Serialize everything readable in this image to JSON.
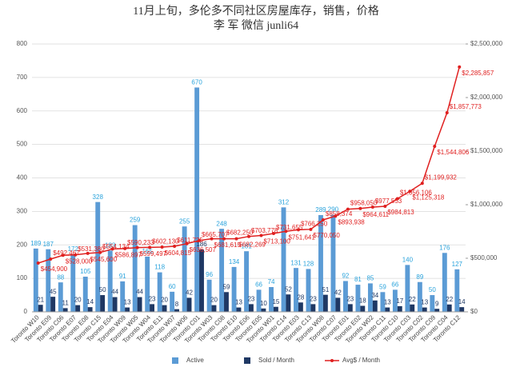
{
  "chart_data": {
    "type": "bar_line",
    "title": "11月上旬，多伦多不同社区房屋库存，销售，价格",
    "subtitle": "李 军  微信 junli64",
    "categories": [
      "Toronto W10",
      "Toronto E09",
      "Toronto C06",
      "Toronto E07",
      "Toronto E08",
      "Toronto C15",
      "Toronto E04",
      "Toronto W09",
      "Toronto W05",
      "Toronto W04",
      "Toronto E11",
      "Toronto W07",
      "Toronto W06",
      "Toronto C01",
      "Toronto W03",
      "Toronto C08",
      "Toronto E10",
      "Toronto E06",
      "Toronto E05",
      "Toronto W01",
      "Toronto C14",
      "Toronto E03",
      "Toronto C13",
      "Toronto W08",
      "Toronto C07",
      "Toronto E01",
      "Toronto E02",
      "Toronto W02",
      "Toronto C11",
      "Toronto C10",
      "Toronto C03",
      "Toronto C02",
      "Toronto C09",
      "Toronto C04",
      "Toronto C12"
    ],
    "series": [
      {
        "name": "Active",
        "color": "#5b9bd5",
        "label_color": "#2aa3dc",
        "values": [
          189,
          187,
          88,
          172,
          105,
          328,
          183,
          91,
          259,
          165,
          118,
          60,
          255,
          670,
          96,
          248,
          134,
          181,
          66,
          74,
          312,
          131,
          128,
          289,
          290,
          92,
          81,
          85,
          59,
          66,
          140,
          89,
          50,
          176,
          127
        ]
      },
      {
        "name": "Sold / Month",
        "color": "#1f3864",
        "label_color": "#1f3864",
        "values": [
          21,
          45,
          11,
          20,
          14,
          50,
          44,
          13,
          44,
          23,
          20,
          8,
          42,
          186,
          20,
          59,
          13,
          23,
          10,
          15,
          52,
          28,
          23,
          51,
          42,
          23,
          18,
          34,
          13,
          17,
          22,
          13,
          9,
          22,
          14
        ]
      },
      {
        "name": "Avg$ / Month",
        "color": "#e02020",
        "label_color": "#e02020",
        "axis": "y2",
        "values": [
          454900,
          492467,
          528000,
          531380,
          545600,
          554134,
          586897,
          590233,
          599497,
          602130,
          604815,
          611725,
          636507,
          665707,
          681615,
          682250,
          682269,
          703778,
          713100,
          731655,
          751641,
          766250,
          770050,
          858374,
          893938,
          958050,
          964611,
          977553,
          984813,
          1056106,
          1125318,
          1199932,
          1544806,
          1857773,
          2285857
        ],
        "value_labels": [
          "$454,900",
          "$492,467",
          "$528,000",
          "$531,380",
          "$545,600",
          "$554,134",
          "$586,897",
          "$590,233",
          "$599,497",
          "$602,130",
          "$604,815",
          "$611,725",
          "$636,507",
          "$665,707",
          "$681,615",
          "$682,250",
          "$682,269",
          "$703,778",
          "$713,100",
          "$731,655",
          "$751,641",
          "$766,250",
          "$770,050",
          "$858,374",
          "$893,938",
          "$958,050",
          "$964,611",
          "$977,553",
          "$984,813",
          "$1,056,106",
          "$1,125,318",
          "$1,199,932",
          "$1,544,806",
          "$1,857,773",
          "$2,285,857"
        ]
      }
    ],
    "ylim": [
      0,
      800
    ],
    "yticks": [
      0,
      100,
      200,
      300,
      400,
      500,
      600,
      700,
      800
    ],
    "y2lim": [
      0,
      2500000
    ],
    "y2ticks": [
      {
        "value": 0,
        "label": "$0"
      },
      {
        "value": 500000,
        "label": "$500,000"
      },
      {
        "value": 1000000,
        "label": "$1,000,000"
      },
      {
        "value": 1500000,
        "label": "$1,500,000"
      },
      {
        "value": 2000000,
        "label": "$2,000,000"
      },
      {
        "value": 2500000,
        "label": "$2,500,000"
      }
    ],
    "grid": true,
    "legend": "bottom"
  }
}
